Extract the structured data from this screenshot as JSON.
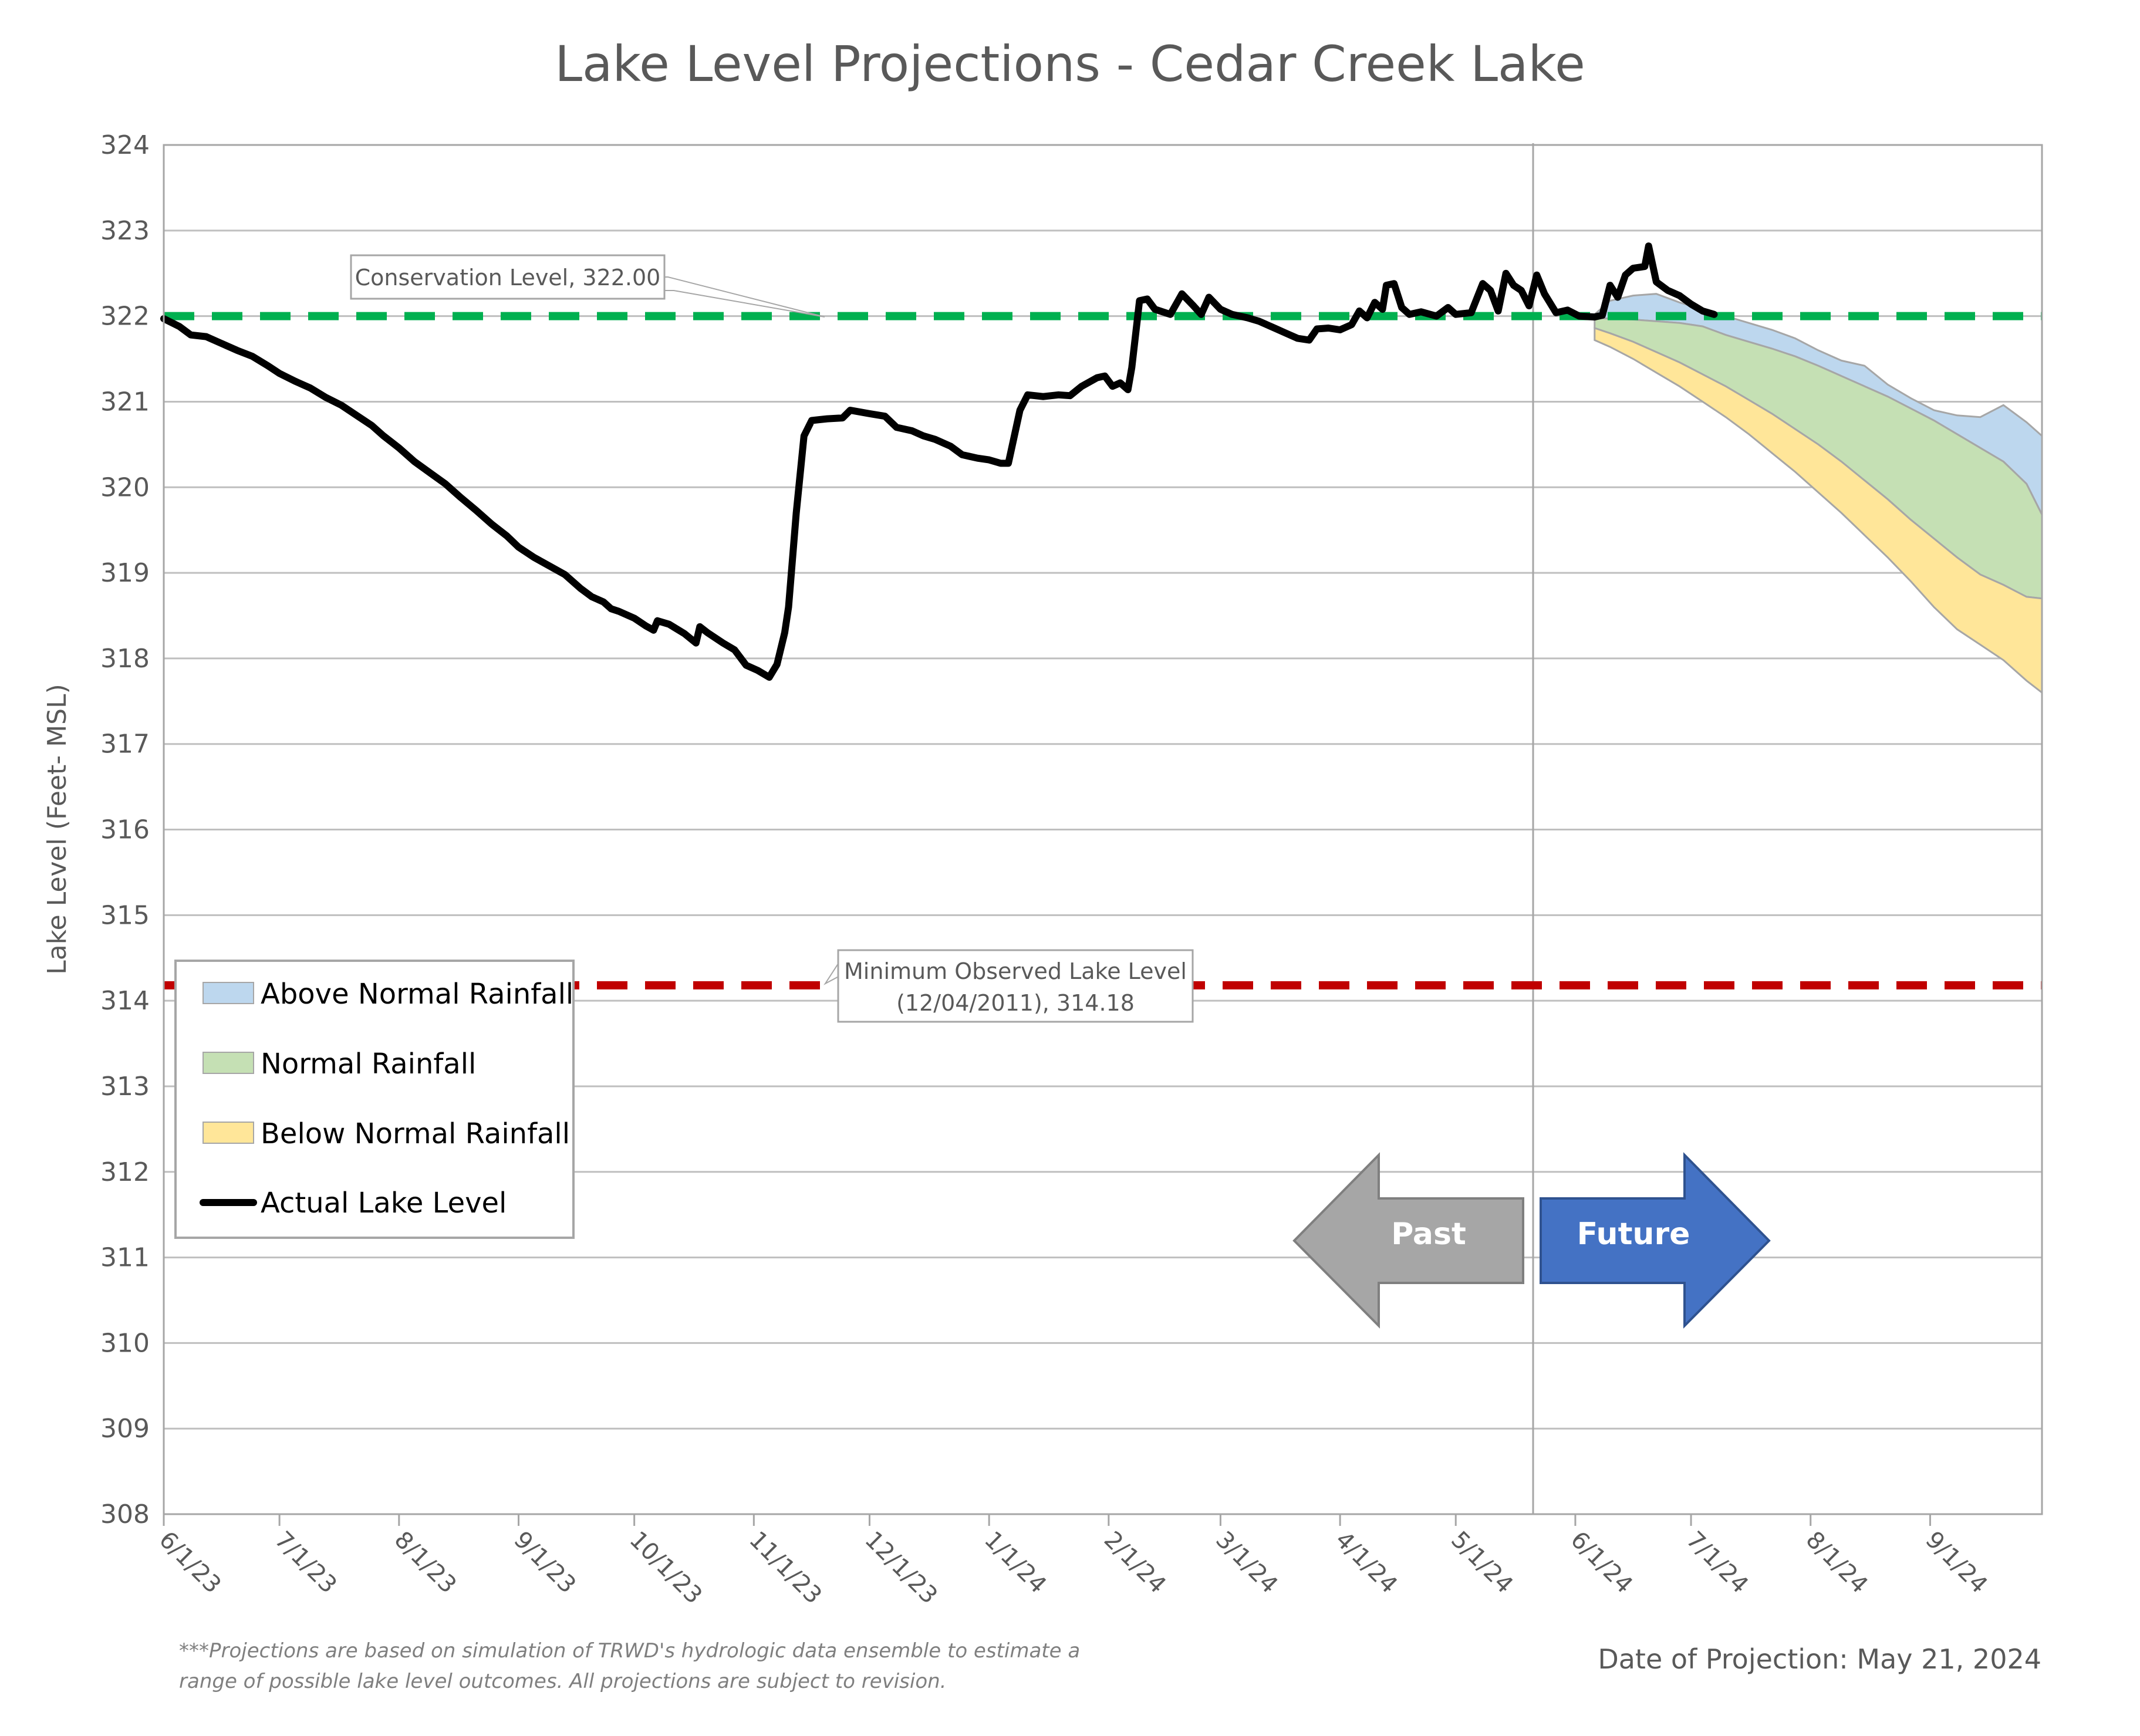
{
  "chart_data": {
    "type": "area",
    "title": "Lake Level Projections - Cedar Creek Lake",
    "ylabel": "Lake Level (Feet- MSL)",
    "xlabel": "",
    "ylim": [
      308,
      324
    ],
    "y_ticks": [
      "308",
      "309",
      "310",
      "311",
      "312",
      "313",
      "314",
      "315",
      "316",
      "317",
      "318",
      "319",
      "320",
      "321",
      "322",
      "323",
      "324"
    ],
    "x_range": [
      "2023-06-01",
      "2024-09-30"
    ],
    "x_ticks": [
      {
        "date": "2023-06-01",
        "label": "6/1/23"
      },
      {
        "date": "2023-07-01",
        "label": "7/1/23"
      },
      {
        "date": "2023-08-01",
        "label": "8/1/23"
      },
      {
        "date": "2023-09-01",
        "label": "9/1/23"
      },
      {
        "date": "2023-10-01",
        "label": "10/1/23"
      },
      {
        "date": "2023-11-01",
        "label": "11/1/23"
      },
      {
        "date": "2023-12-01",
        "label": "12/1/23"
      },
      {
        "date": "2024-01-01",
        "label": "1/1/24"
      },
      {
        "date": "2024-02-01",
        "label": "2/1/24"
      },
      {
        "date": "2024-03-01",
        "label": "3/1/24"
      },
      {
        "date": "2024-04-01",
        "label": "4/1/24"
      },
      {
        "date": "2024-05-01",
        "label": "5/1/24"
      },
      {
        "date": "2024-06-01",
        "label": "6/1/24"
      },
      {
        "date": "2024-07-01",
        "label": "7/1/24"
      },
      {
        "date": "2024-08-01",
        "label": "8/1/24"
      },
      {
        "date": "2024-09-01",
        "label": "9/1/24"
      }
    ],
    "grid": "horizontal",
    "projection_date": "2024-05-21",
    "reference_lines": [
      {
        "label": "Conservation Level, 322.00",
        "value": 322.0,
        "color": "#00b050",
        "style": "dashed"
      },
      {
        "label_lines": [
          "Minimum Observed Lake Level",
          "(12/04/2011), 314.18"
        ],
        "value": 314.18,
        "color": "#c00000",
        "style": "dashed"
      }
    ],
    "series": [
      {
        "name": "Actual Lake Level",
        "kind": "line",
        "color": "#000000",
        "points": [
          [
            "2023-06-01",
            321.97
          ],
          [
            "2023-06-05",
            321.88
          ],
          [
            "2023-06-08",
            321.78
          ],
          [
            "2023-06-12",
            321.76
          ],
          [
            "2023-06-16",
            321.68
          ],
          [
            "2023-06-20",
            321.6
          ],
          [
            "2023-06-24",
            321.53
          ],
          [
            "2023-06-28",
            321.42
          ],
          [
            "2023-07-01",
            321.33
          ],
          [
            "2023-07-05",
            321.24
          ],
          [
            "2023-07-09",
            321.16
          ],
          [
            "2023-07-13",
            321.05
          ],
          [
            "2023-07-17",
            320.96
          ],
          [
            "2023-07-21",
            320.84
          ],
          [
            "2023-07-25",
            320.72
          ],
          [
            "2023-07-28",
            320.6
          ],
          [
            "2023-08-01",
            320.46
          ],
          [
            "2023-08-05",
            320.3
          ],
          [
            "2023-08-09",
            320.17
          ],
          [
            "2023-08-13",
            320.04
          ],
          [
            "2023-08-17",
            319.88
          ],
          [
            "2023-08-21",
            319.73
          ],
          [
            "2023-08-25",
            319.57
          ],
          [
            "2023-08-29",
            319.43
          ],
          [
            "2023-09-01",
            319.3
          ],
          [
            "2023-09-05",
            319.18
          ],
          [
            "2023-09-09",
            319.08
          ],
          [
            "2023-09-13",
            318.98
          ],
          [
            "2023-09-17",
            318.82
          ],
          [
            "2023-09-20",
            318.72
          ],
          [
            "2023-09-23",
            318.66
          ],
          [
            "2023-09-25",
            318.58
          ],
          [
            "2023-09-27",
            318.55
          ],
          [
            "2023-10-01",
            318.47
          ],
          [
            "2023-10-04",
            318.38
          ],
          [
            "2023-10-06",
            318.33
          ],
          [
            "2023-10-07",
            318.44
          ],
          [
            "2023-10-10",
            318.4
          ],
          [
            "2023-10-14",
            318.29
          ],
          [
            "2023-10-17",
            318.18
          ],
          [
            "2023-10-18",
            318.37
          ],
          [
            "2023-10-20",
            318.3
          ],
          [
            "2023-10-24",
            318.18
          ],
          [
            "2023-10-27",
            318.1
          ],
          [
            "2023-10-30",
            317.92
          ],
          [
            "2023-11-02",
            317.86
          ],
          [
            "2023-11-05",
            317.78
          ],
          [
            "2023-11-07",
            317.93
          ],
          [
            "2023-11-09",
            318.3
          ],
          [
            "2023-11-10",
            318.6
          ],
          [
            "2023-11-12",
            319.7
          ],
          [
            "2023-11-14",
            320.6
          ],
          [
            "2023-11-16",
            320.78
          ],
          [
            "2023-11-20",
            320.8
          ],
          [
            "2023-11-24",
            320.81
          ],
          [
            "2023-11-26",
            320.9
          ],
          [
            "2023-12-01",
            320.86
          ],
          [
            "2023-12-05",
            320.83
          ],
          [
            "2023-12-08",
            320.7
          ],
          [
            "2023-12-12",
            320.66
          ],
          [
            "2023-12-15",
            320.6
          ],
          [
            "2023-12-18",
            320.56
          ],
          [
            "2023-12-22",
            320.48
          ],
          [
            "2023-12-25",
            320.38
          ],
          [
            "2023-12-29",
            320.34
          ],
          [
            "2024-01-01",
            320.32
          ],
          [
            "2024-01-04",
            320.28
          ],
          [
            "2024-01-06",
            320.28
          ],
          [
            "2024-01-09",
            320.9
          ],
          [
            "2024-01-11",
            321.08
          ],
          [
            "2024-01-15",
            321.06
          ],
          [
            "2024-01-19",
            321.08
          ],
          [
            "2024-01-22",
            321.07
          ],
          [
            "2024-01-25",
            321.18
          ],
          [
            "2024-01-29",
            321.28
          ],
          [
            "2024-01-31",
            321.3
          ],
          [
            "2024-02-02",
            321.18
          ],
          [
            "2024-02-04",
            321.22
          ],
          [
            "2024-02-06",
            321.14
          ],
          [
            "2024-02-07",
            321.4
          ],
          [
            "2024-02-09",
            322.18
          ],
          [
            "2024-02-11",
            322.2
          ],
          [
            "2024-02-13",
            322.08
          ],
          [
            "2024-02-17",
            322.02
          ],
          [
            "2024-02-20",
            322.26
          ],
          [
            "2024-02-23",
            322.12
          ],
          [
            "2024-02-25",
            322.02
          ],
          [
            "2024-02-27",
            322.22
          ],
          [
            "2024-03-01",
            322.08
          ],
          [
            "2024-03-04",
            322.02
          ],
          [
            "2024-03-08",
            321.98
          ],
          [
            "2024-03-11",
            321.94
          ],
          [
            "2024-03-15",
            321.86
          ],
          [
            "2024-03-18",
            321.8
          ],
          [
            "2024-03-21",
            321.74
          ],
          [
            "2024-03-24",
            321.72
          ],
          [
            "2024-03-26",
            321.85
          ],
          [
            "2024-03-29",
            321.86
          ],
          [
            "2024-04-01",
            321.84
          ],
          [
            "2024-04-04",
            321.9
          ],
          [
            "2024-04-06",
            322.06
          ],
          [
            "2024-04-08",
            321.98
          ],
          [
            "2024-04-10",
            322.16
          ],
          [
            "2024-04-12",
            322.08
          ],
          [
            "2024-04-13",
            322.36
          ],
          [
            "2024-04-15",
            322.38
          ],
          [
            "2024-04-17",
            322.1
          ],
          [
            "2024-04-19",
            322.02
          ],
          [
            "2024-04-22",
            322.05
          ],
          [
            "2024-04-26",
            322.0
          ],
          [
            "2024-04-29",
            322.1
          ],
          [
            "2024-05-01",
            322.02
          ],
          [
            "2024-05-05",
            322.04
          ],
          [
            "2024-05-08",
            322.38
          ],
          [
            "2024-05-10",
            322.3
          ],
          [
            "2024-05-12",
            322.06
          ],
          [
            "2024-05-14",
            322.5
          ],
          [
            "2024-05-16",
            322.36
          ],
          [
            "2024-05-18",
            322.3
          ],
          [
            "2024-05-20",
            322.12
          ],
          [
            "2024-05-22",
            322.48
          ],
          [
            "2024-05-24",
            322.26
          ],
          [
            "2024-05-27",
            322.04
          ],
          [
            "2024-05-30",
            322.07
          ],
          [
            "2024-06-02",
            322.0
          ],
          [
            "2024-06-06",
            321.99
          ],
          [
            "2024-06-08",
            322.01
          ],
          [
            "2024-06-10",
            322.36
          ],
          [
            "2024-06-12",
            322.22
          ],
          [
            "2024-06-14",
            322.48
          ],
          [
            "2024-06-16",
            322.56
          ],
          [
            "2024-06-19",
            322.58
          ],
          [
            "2024-06-20",
            322.82
          ],
          [
            "2024-06-22",
            322.4
          ],
          [
            "2024-06-25",
            322.3
          ],
          [
            "2024-06-28",
            322.24
          ],
          [
            "2024-07-01",
            322.14
          ],
          [
            "2024-07-04",
            322.06
          ],
          [
            "2024-07-07",
            322.02
          ]
        ]
      },
      {
        "name": "Above Normal Rainfall",
        "kind": "band",
        "color": "#bdd7ee",
        "points": [
          [
            "2024-06-06",
            321.98,
            322.02
          ],
          [
            "2024-06-10",
            321.97,
            322.18
          ],
          [
            "2024-06-16",
            321.96,
            322.24
          ],
          [
            "2024-06-22",
            321.94,
            322.26
          ],
          [
            "2024-06-28",
            321.92,
            322.16
          ],
          [
            "2024-07-04",
            321.88,
            322.08
          ],
          [
            "2024-07-10",
            321.78,
            322.0
          ],
          [
            "2024-07-16",
            321.7,
            321.92
          ],
          [
            "2024-07-22",
            321.62,
            321.84
          ],
          [
            "2024-07-28",
            321.53,
            321.74
          ],
          [
            "2024-08-03",
            321.42,
            321.6
          ],
          [
            "2024-08-09",
            321.3,
            321.48
          ],
          [
            "2024-08-15",
            321.18,
            321.42
          ],
          [
            "2024-08-21",
            321.06,
            321.2
          ],
          [
            "2024-08-27",
            320.92,
            321.04
          ],
          [
            "2024-09-02",
            320.78,
            320.9
          ],
          [
            "2024-09-08",
            320.62,
            320.84
          ],
          [
            "2024-09-14",
            320.46,
            320.82
          ],
          [
            "2024-09-20",
            320.3,
            320.96
          ],
          [
            "2024-09-26",
            320.04,
            320.76
          ],
          [
            "2024-09-30",
            319.68,
            320.6
          ]
        ]
      },
      {
        "name": "Normal Rainfall",
        "kind": "band",
        "color": "#c5e0b4",
        "points": [
          [
            "2024-06-06",
            321.86,
            321.98
          ],
          [
            "2024-06-10",
            321.8,
            321.97
          ],
          [
            "2024-06-16",
            321.7,
            321.96
          ],
          [
            "2024-06-22",
            321.58,
            321.94
          ],
          [
            "2024-06-28",
            321.46,
            321.92
          ],
          [
            "2024-07-04",
            321.32,
            321.88
          ],
          [
            "2024-07-10",
            321.18,
            321.78
          ],
          [
            "2024-07-16",
            321.02,
            321.7
          ],
          [
            "2024-07-22",
            320.86,
            321.62
          ],
          [
            "2024-07-28",
            320.68,
            321.53
          ],
          [
            "2024-08-03",
            320.5,
            321.42
          ],
          [
            "2024-08-09",
            320.3,
            321.3
          ],
          [
            "2024-08-15",
            320.08,
            321.18
          ],
          [
            "2024-08-21",
            319.86,
            321.06
          ],
          [
            "2024-08-27",
            319.62,
            320.92
          ],
          [
            "2024-09-02",
            319.4,
            320.78
          ],
          [
            "2024-09-08",
            319.18,
            320.62
          ],
          [
            "2024-09-14",
            318.98,
            320.46
          ],
          [
            "2024-09-20",
            318.86,
            320.3
          ],
          [
            "2024-09-26",
            318.72,
            320.04
          ],
          [
            "2024-09-30",
            318.7,
            319.68
          ]
        ]
      },
      {
        "name": "Below Normal Rainfall",
        "kind": "band",
        "color": "#ffe699",
        "points": [
          [
            "2024-06-06",
            321.72,
            321.86
          ],
          [
            "2024-06-10",
            321.64,
            321.8
          ],
          [
            "2024-06-16",
            321.5,
            321.7
          ],
          [
            "2024-06-22",
            321.34,
            321.58
          ],
          [
            "2024-06-28",
            321.18,
            321.46
          ],
          [
            "2024-07-04",
            321.0,
            321.32
          ],
          [
            "2024-07-10",
            320.82,
            321.18
          ],
          [
            "2024-07-16",
            320.62,
            321.02
          ],
          [
            "2024-07-22",
            320.4,
            320.86
          ],
          [
            "2024-07-28",
            320.18,
            320.68
          ],
          [
            "2024-08-03",
            319.94,
            320.5
          ],
          [
            "2024-08-09",
            319.7,
            320.3
          ],
          [
            "2024-08-15",
            319.44,
            320.08
          ],
          [
            "2024-08-21",
            319.18,
            319.86
          ],
          [
            "2024-08-27",
            318.9,
            319.62
          ],
          [
            "2024-09-02",
            318.6,
            319.4
          ],
          [
            "2024-09-08",
            318.34,
            319.18
          ],
          [
            "2024-09-14",
            318.16,
            318.98
          ],
          [
            "2024-09-20",
            317.98,
            318.86
          ],
          [
            "2024-09-26",
            317.74,
            318.72
          ],
          [
            "2024-09-30",
            317.6,
            318.7
          ]
        ]
      }
    ],
    "legend": {
      "placement": "bottom-left",
      "entries": [
        "Above Normal Rainfall",
        "Normal Rainfall",
        "Below Normal Rainfall",
        "Actual Lake Level"
      ]
    },
    "annotations": {
      "past_label": "Past",
      "future_label": "Future",
      "past_color": "#a6a6a6",
      "future_color": "#4472c4"
    }
  },
  "footnote": {
    "line1": "***Projections are based on simulation of TRWD's hydrologic data ensemble to estimate a",
    "line2": "range of possible lake level outcomes.  All projections are subject to revision."
  },
  "projection_label": "Date of Projection: May 21, 2024"
}
